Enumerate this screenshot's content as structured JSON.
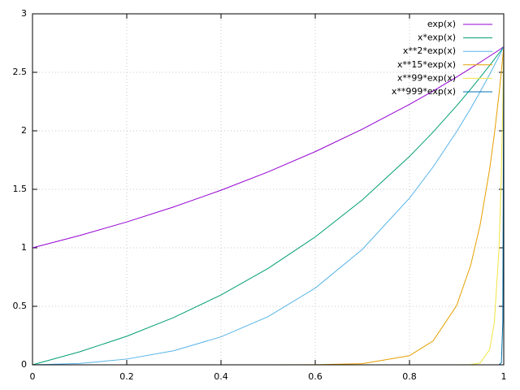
{
  "chart_data": {
    "type": "line",
    "x": [
      0,
      0.1,
      0.2,
      0.3,
      0.4,
      0.5,
      0.6,
      0.7,
      0.8,
      0.85,
      0.9,
      0.93,
      0.95,
      0.97,
      0.98,
      0.99,
      0.995,
      0.998,
      1
    ],
    "series": [
      {
        "name": "exp(x)",
        "color": "#9400d3",
        "values": [
          1,
          1.105,
          1.221,
          1.35,
          1.492,
          1.649,
          1.822,
          2.014,
          2.226,
          2.34,
          2.46,
          2.535,
          2.586,
          2.638,
          2.664,
          2.691,
          2.705,
          2.713,
          2.718
        ]
      },
      {
        "name": "x*exp(x)",
        "color": "#009e73",
        "values": [
          0,
          0.111,
          0.244,
          0.405,
          0.597,
          0.824,
          1.093,
          1.41,
          1.781,
          1.989,
          2.214,
          2.357,
          2.457,
          2.559,
          2.611,
          2.664,
          2.691,
          2.708,
          2.718
        ]
      },
      {
        "name": "x**2*exp(x)",
        "color": "#56b4e9",
        "values": [
          0,
          0.011,
          0.049,
          0.121,
          0.239,
          0.412,
          0.656,
          0.987,
          1.425,
          1.691,
          1.993,
          2.192,
          2.334,
          2.482,
          2.559,
          2.638,
          2.678,
          2.702,
          2.718
        ]
      },
      {
        "name": "x**15*exp(x)",
        "color": "#e69f00",
        "values": [
          0,
          0,
          0,
          0,
          0,
          5e-05,
          0.00086,
          0.0096,
          0.078,
          0.204,
          0.506,
          0.853,
          1.198,
          1.671,
          1.968,
          2.315,
          2.509,
          2.633,
          2.718
        ]
      },
      {
        "name": "x**99*exp(x)",
        "color": "#f0e442",
        "values": [
          0,
          0,
          0,
          0,
          0,
          0,
          0,
          0,
          0,
          0,
          0.0001,
          0.002,
          0.016,
          0.129,
          0.36,
          0.995,
          1.647,
          2.225,
          2.718
        ]
      },
      {
        "name": "x**999*exp(x)",
        "color": "#0072b2",
        "values": [
          0,
          0,
          0,
          0,
          0,
          0,
          0,
          0,
          0,
          0,
          0,
          0,
          0,
          0,
          0,
          0.0001,
          0.018,
          0.368,
          2.718
        ]
      }
    ],
    "xlim": [
      0,
      1
    ],
    "xticks": [
      0,
      0.2,
      0.4,
      0.6,
      0.8,
      1
    ],
    "ylim": [
      0,
      3
    ],
    "yticks": [
      0,
      0.5,
      1,
      1.5,
      2,
      2.5,
      3
    ],
    "grid": true,
    "legend": "top-right"
  }
}
